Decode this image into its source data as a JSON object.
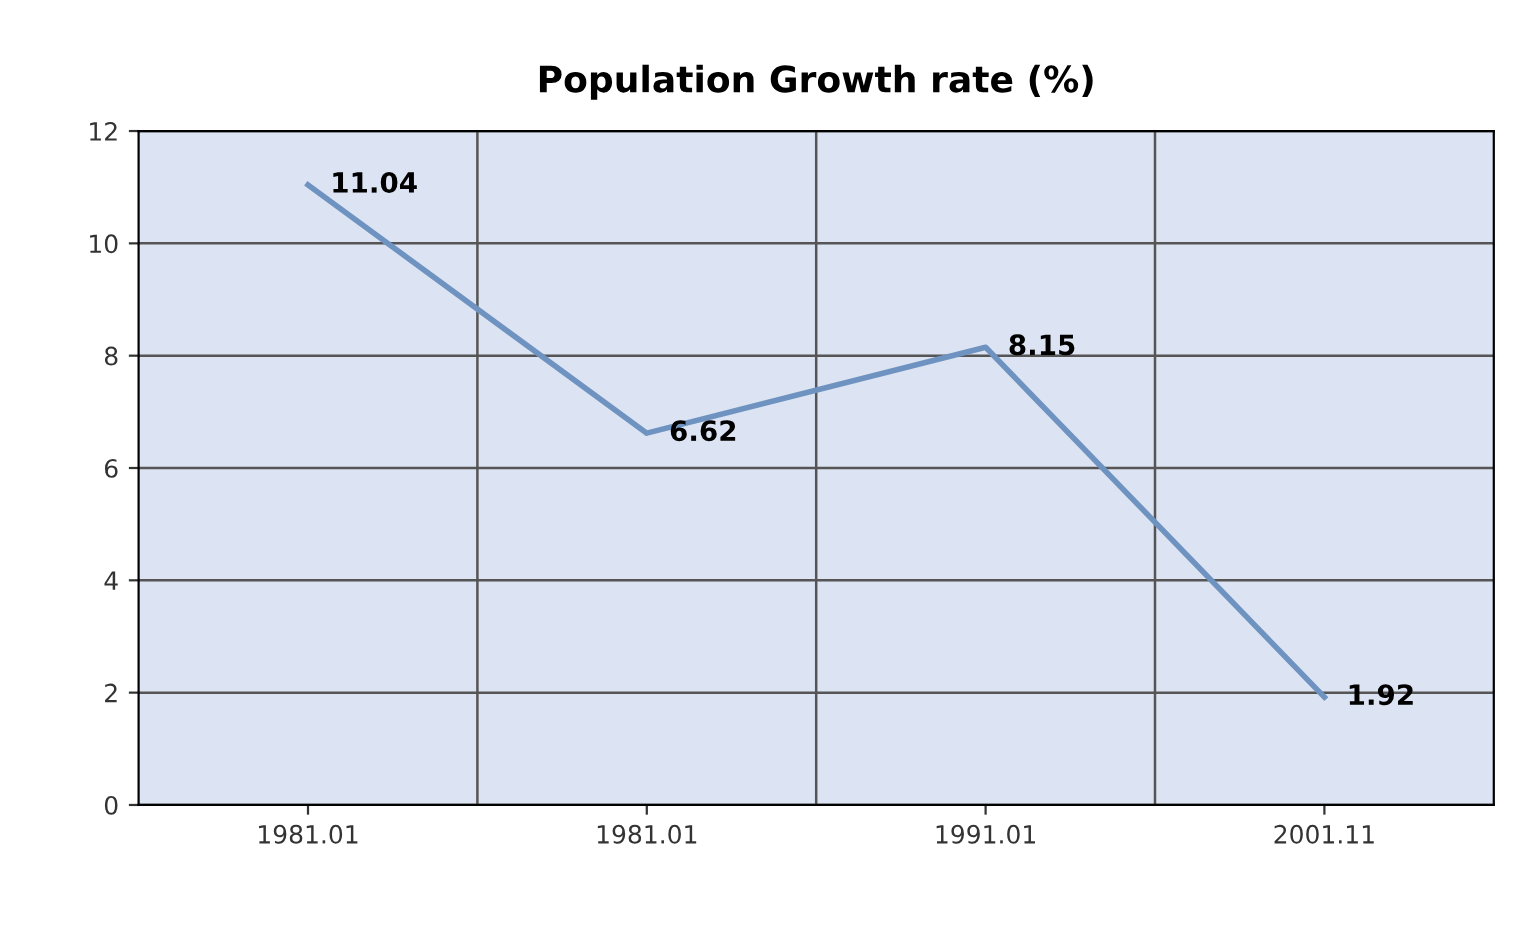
{
  "chart_data": {
    "type": "line",
    "title": "Population Growth rate (%)",
    "categories": [
      "1981.01",
      "1981.01",
      "1991.01",
      "2001.11"
    ],
    "series": [
      {
        "color": "#6f93c0",
        "values": [
          11.04,
          6.62,
          8.15,
          1.92
        ]
      }
    ],
    "ylim": [
      0,
      12
    ],
    "yticks": [
      0,
      2,
      4,
      6,
      8,
      10,
      12
    ],
    "grid": true,
    "data_labels": true,
    "marker": "none",
    "line_style": "solid"
  }
}
